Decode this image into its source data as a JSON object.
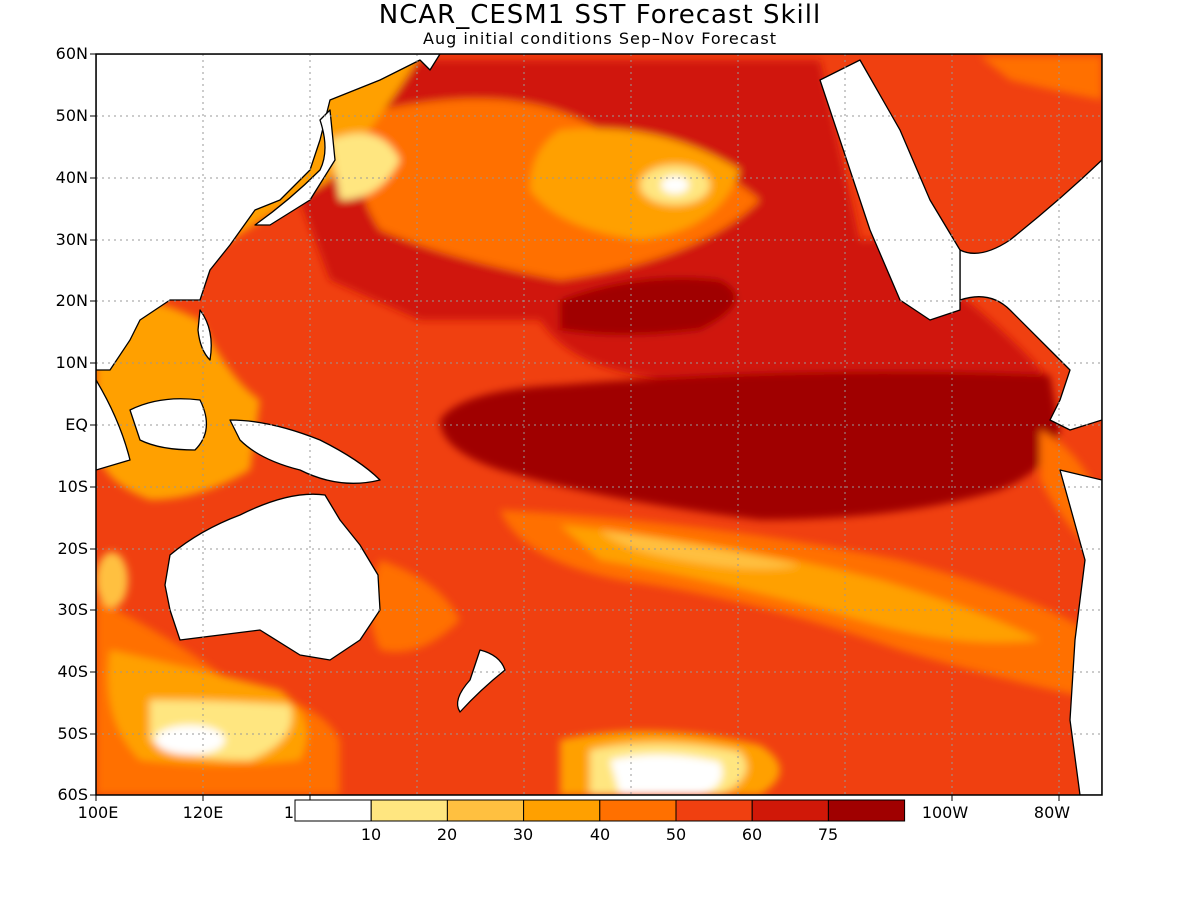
{
  "title": "NCAR_CESM1 SST Forecast Skill",
  "subtitle": "Aug initial conditions  Sep–Nov Forecast",
  "lat_labels": [
    "60N",
    "50N",
    "40N",
    "30N",
    "20N",
    "10N",
    "EQ",
    "10S",
    "20S",
    "30S",
    "40S",
    "50S",
    "60S"
  ],
  "lon_labels": [
    "100E",
    "120E",
    "1",
    "100W",
    "80W"
  ],
  "colorbar": {
    "colors": [
      "#ffffff",
      "#ffe680",
      "#ffc040",
      "#ffa000",
      "#ff7000",
      "#f04010",
      "#d01808",
      "#a00000"
    ],
    "tick_labels": [
      "10",
      "20",
      "30",
      "40",
      "50",
      "60",
      "75"
    ]
  },
  "colors": {
    "land": "#ffffff",
    "coast": "#000000",
    "grid": "#999999"
  }
}
